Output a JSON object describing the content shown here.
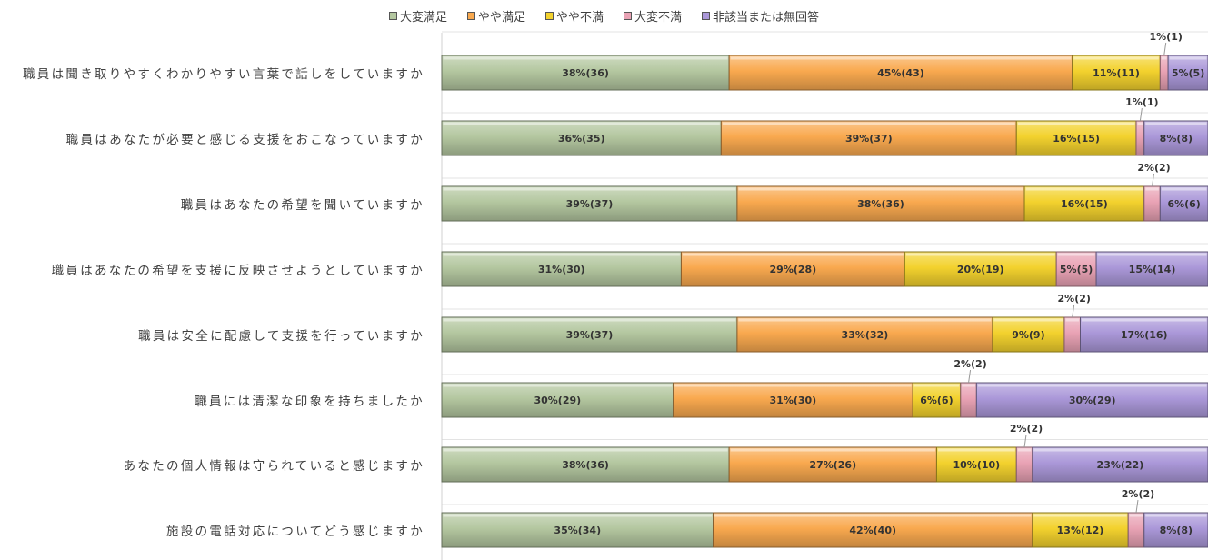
{
  "chart_data": {
    "type": "bar",
    "orientation": "horizontal",
    "stacked": true,
    "normalized": true,
    "legend_position": "top",
    "grid": true,
    "categories": [
      "職員は聞き取りやすくわかりやすい言葉で話しをしていますか",
      "職員はあなたが必要と感じる支援をおこなっていますか",
      "職員はあなたの希望を聞いていますか",
      "職員はあなたの希望を支援に反映させようとしていますか",
      "職員は安全に配慮して支援を行っていますか",
      "職員には清潔な印象を持ちましたか",
      "あなたの個人情報は守られていると感じますか",
      "施設の電話対応についてどう感じますか"
    ],
    "series": [
      {
        "name": "大変満足",
        "color": "#b4c7a0",
        "values": [
          36,
          35,
          37,
          30,
          37,
          29,
          36,
          34
        ],
        "labels": [
          "38%(36)",
          "36%(35)",
          "39%(37)",
          "31%(30)",
          "39%(37)",
          "30%(29)",
          "38%(36)",
          "35%(34)"
        ]
      },
      {
        "name": "やや満足",
        "color": "#f9a94f",
        "values": [
          43,
          37,
          36,
          28,
          32,
          30,
          26,
          40
        ],
        "labels": [
          "45%(43)",
          "39%(37)",
          "38%(36)",
          "29%(28)",
          "33%(32)",
          "31%(30)",
          "27%(26)",
          "42%(40)"
        ]
      },
      {
        "name": "やや不満",
        "color": "#f3d22e",
        "values": [
          11,
          15,
          15,
          19,
          9,
          6,
          10,
          12
        ],
        "labels": [
          "11%(11)",
          "16%(15)",
          "16%(15)",
          "20%(19)",
          "9%(9)",
          "6%(6)",
          "10%(10)",
          "13%(12)"
        ]
      },
      {
        "name": "大変不満",
        "color": "#e9a3b5",
        "values": [
          1,
          1,
          2,
          5,
          2,
          2,
          2,
          2
        ],
        "labels": [
          "1%(1)",
          "1%(1)",
          "2%(2)",
          "5%(5)",
          "2%(2)",
          "2%(2)",
          "2%(2)",
          "2%(2)"
        ]
      },
      {
        "name": "非該当または無回答",
        "color": "#ab98d9",
        "values": [
          5,
          8,
          6,
          14,
          16,
          29,
          22,
          8
        ],
        "labels": [
          "5%(5)",
          "8%(8)",
          "6%(6)",
          "15%(14)",
          "17%(16)",
          "30%(29)",
          "23%(22)",
          "8%(8)"
        ]
      }
    ]
  },
  "legend_markers": {
    "border": "#555555",
    "text_color": "#404040"
  }
}
